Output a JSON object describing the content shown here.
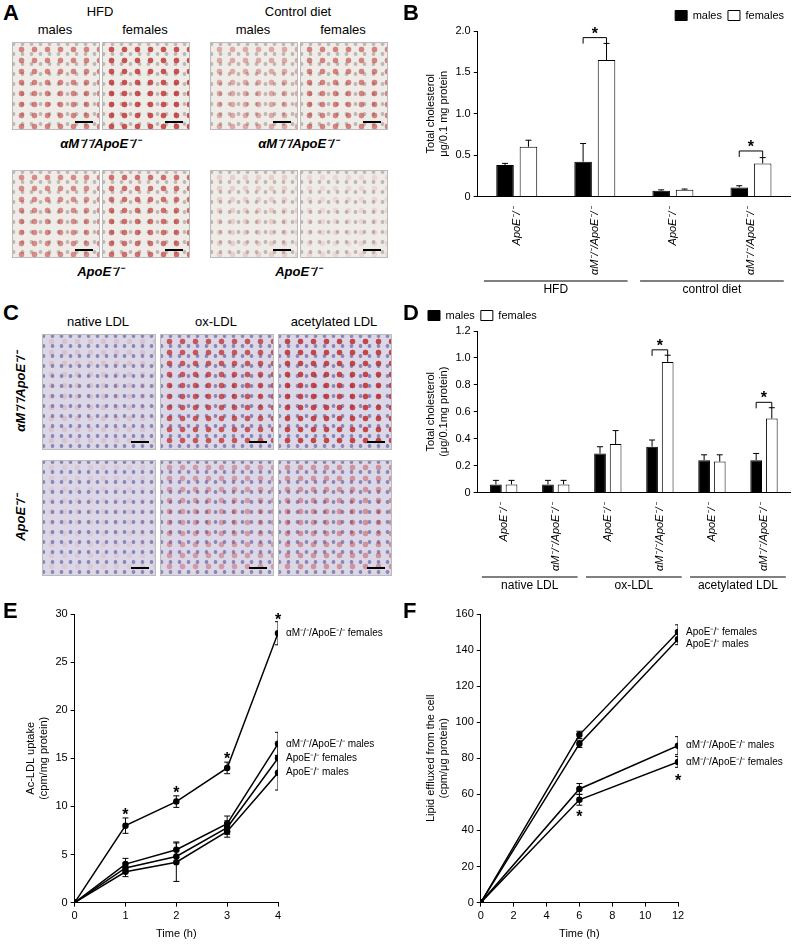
{
  "images": [
    {
      "panel": "A",
      "column_groups": [
        "HFD",
        "Control diet"
      ],
      "columns": [
        "males",
        "females",
        "males",
        "females"
      ],
      "rows": [
        "αM⁻/⁻/ApoE⁻/⁻",
        "ApoE⁻/⁻"
      ]
    },
    {
      "panel": "C",
      "columns": [
        "native LDL",
        "ox-LDL",
        "acetylated LDL"
      ],
      "rows": [
        "αM⁻/⁻/ApoE⁻/⁻",
        "ApoE⁻/⁻"
      ]
    }
  ],
  "chart_data": [
    {
      "panel": "B",
      "type": "bar",
      "categories": [
        "ApoE⁻/⁻",
        "αM⁻/⁻/ApoE⁻/⁻",
        "ApoE⁻/⁻",
        "αM⁻/⁻/ApoE⁻/⁻"
      ],
      "groups": [
        {
          "name": "HFD",
          "size": 2
        },
        {
          "name": "control diet",
          "size": 2
        }
      ],
      "series": [
        {
          "name": "males",
          "color": "#000000",
          "values": [
            0.38,
            0.42,
            0.07,
            0.11
          ],
          "errors": [
            0.02,
            0.22,
            0.01,
            0.02
          ]
        },
        {
          "name": "females",
          "color": "#ffffff",
          "values": [
            0.6,
            1.65,
            0.08,
            0.4
          ],
          "errors": [
            0.08,
            0.2,
            0.01,
            0.07
          ]
        }
      ],
      "ylabel": [
        "Total cholesterol",
        "μg/0.1 mg protein"
      ],
      "ylim": [
        0,
        2
      ],
      "yticks": [
        0,
        0.5,
        {
          "value": 1,
          "label": "1.0"
        },
        1.5,
        {
          "value": 2,
          "label": "2.0"
        }
      ],
      "grid": false,
      "legend": "top-right",
      "annotations": [
        {
          "text": "*",
          "category": 1,
          "y": 1.92
        },
        {
          "text": "*",
          "category": 3,
          "y": 0.55
        }
      ]
    },
    {
      "panel": "D",
      "type": "bar",
      "categories": [
        "ApoE⁻/⁻",
        "αM⁻/⁻/ApoE⁻/⁻",
        "ApoE⁻/⁻",
        "αM⁻/⁻/ApoE⁻/⁻",
        "ApoE⁻/⁻",
        "αM⁻/⁻/ApoE⁻/⁻"
      ],
      "groups": [
        {
          "name": "native LDL",
          "size": 2
        },
        {
          "name": "ox-LDL",
          "size": 2
        },
        {
          "name": "acetylated LDL",
          "size": 2
        }
      ],
      "series": [
        {
          "name": "males",
          "color": "#000000",
          "values": [
            0.06,
            0.06,
            0.29,
            0.34,
            0.24,
            0.24
          ],
          "errors": [
            0.03,
            0.03,
            0.05,
            0.05,
            0.04,
            0.05
          ]
        },
        {
          "name": "females",
          "color": "#ffffff",
          "values": [
            0.06,
            0.06,
            0.36,
            0.97,
            0.23,
            0.55
          ],
          "errors": [
            0.03,
            0.03,
            0.1,
            0.05,
            0.05,
            0.08
          ]
        }
      ],
      "ylabel": [
        "Total cholesterol",
        "(μg/0.1mg protein)"
      ],
      "ylim": [
        0,
        1.2
      ],
      "yticks": [
        0,
        0.2,
        0.4,
        0.6,
        0.8,
        {
          "value": 1,
          "label": "1.0"
        },
        1.2
      ],
      "grid": false,
      "legend": "top-left",
      "annotations": [
        {
          "text": "*",
          "category": 3,
          "y": 1.06
        },
        {
          "text": "*",
          "category": 5,
          "y": 0.67
        }
      ]
    },
    {
      "panel": "E",
      "type": "line",
      "x": [
        0,
        1,
        2,
        3,
        4
      ],
      "series": [
        {
          "name": "αM⁻/⁻/ApoE⁻/⁻ females",
          "color": "#000000",
          "values": [
            0,
            8,
            10.5,
            14,
            28
          ],
          "errors": [
            0,
            0.8,
            0.6,
            0.6,
            1.2
          ]
        },
        {
          "name": "αM⁻/⁻/ApoE⁻/⁻ males",
          "color": "#000000",
          "values": [
            0,
            4,
            5.5,
            8.2,
            16.5
          ],
          "errors": [
            0,
            0.6,
            0.8,
            0.8,
            1.2
          ]
        },
        {
          "name": "ApoE⁻/⁻ females",
          "color": "#000000",
          "values": [
            0,
            3.6,
            4.8,
            7.8,
            15
          ],
          "errors": [
            0,
            0.5,
            0.6,
            0.7,
            1.5
          ]
        },
        {
          "name": "ApoE⁻/⁻ males",
          "color": "#000000",
          "values": [
            0,
            3.2,
            4.2,
            7.4,
            13.5
          ],
          "errors": [
            0,
            0.5,
            2,
            0.6,
            1.8
          ]
        }
      ],
      "xlabel": "Time (h)",
      "ylabel": [
        "Ac-LDL uptake",
        "(cpm/mg protein)"
      ],
      "xlim": [
        0,
        4
      ],
      "xticks": [
        0,
        1,
        2,
        3,
        4
      ],
      "ylim": [
        0,
        30
      ],
      "yticks": [
        0,
        5,
        10,
        15,
        20,
        25,
        30
      ],
      "grid": false,
      "marker": "circle",
      "annotations": [
        {
          "text": "*",
          "x": 1,
          "y": 9.2
        },
        {
          "text": "*",
          "x": 2,
          "y": 11.5
        },
        {
          "text": "*",
          "x": 3,
          "y": 15
        },
        {
          "text": "*",
          "x": 4,
          "y": 29.5
        }
      ]
    },
    {
      "panel": "F",
      "type": "line",
      "x": [
        0,
        6,
        12
      ],
      "series": [
        {
          "name": "ApoE⁻/⁻ females",
          "color": "#000000",
          "values": [
            0,
            93,
            150
          ],
          "errors": [
            0,
            2,
            4
          ]
        },
        {
          "name": "ApoE⁻/⁻ males",
          "color": "#000000",
          "values": [
            0,
            88,
            146
          ],
          "errors": [
            0,
            2,
            3
          ]
        },
        {
          "name": "αM⁻/⁻/ApoE⁻/⁻ males",
          "color": "#000000",
          "values": [
            0,
            63,
            87
          ],
          "errors": [
            0,
            3,
            5
          ]
        },
        {
          "name": "αM⁻/⁻/ApoE⁻/⁻ females",
          "color": "#000000",
          "values": [
            0,
            57,
            78
          ],
          "errors": [
            0,
            3,
            3
          ]
        }
      ],
      "xlabel": "Time (h)",
      "ylabel": [
        "Lipid effluxed from the cell",
        "(cpm/μg protein)"
      ],
      "xlim": [
        0,
        12
      ],
      "xticks": [
        0,
        2,
        4,
        6,
        8,
        10,
        12
      ],
      "ylim": [
        0,
        160
      ],
      "yticks": [
        0,
        20,
        40,
        60,
        80,
        100,
        120,
        140,
        160
      ],
      "grid": false,
      "marker": "circle",
      "annotations": [
        {
          "text": "*",
          "x": 6,
          "y": 48
        },
        {
          "text": "*",
          "x": 12,
          "y": 68
        }
      ]
    }
  ]
}
